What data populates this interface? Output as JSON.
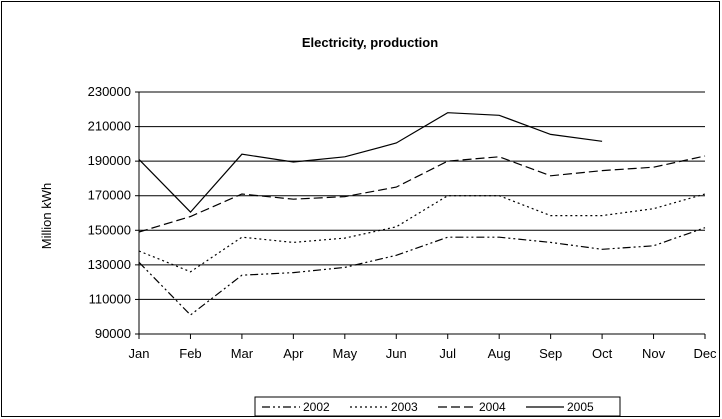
{
  "chart_data": {
    "type": "line",
    "title": "Electricity, production",
    "xlabel": "",
    "ylabel": "Million kWh",
    "categories": [
      "Jan",
      "Feb",
      "Mar",
      "Apr",
      "May",
      "Jun",
      "Jul",
      "Aug",
      "Sep",
      "Oct",
      "Nov",
      "Dec"
    ],
    "ylim": [
      90000,
      230000
    ],
    "yticks": [
      90000,
      110000,
      130000,
      150000,
      170000,
      190000,
      210000,
      230000
    ],
    "grid": true,
    "legend_position": "bottom",
    "series": [
      {
        "name": "2002",
        "dash": "dash-dot-dot",
        "color": "#000000",
        "values": [
          131500,
          101000,
          124000,
          125500,
          128500,
          135500,
          146000,
          146000,
          143000,
          139000,
          141000,
          151500
        ]
      },
      {
        "name": "2003",
        "dash": "dotted",
        "color": "#000000",
        "values": [
          138000,
          126000,
          146000,
          143000,
          145500,
          152000,
          170000,
          170000,
          158500,
          158500,
          162500,
          171000
        ]
      },
      {
        "name": "2004",
        "dash": "dashed",
        "color": "#000000",
        "values": [
          149000,
          158000,
          171000,
          168000,
          169500,
          175000,
          190000,
          192500,
          181500,
          184500,
          186500,
          193000
        ]
      },
      {
        "name": "2005",
        "dash": "solid",
        "color": "#000000",
        "values": [
          191000,
          160500,
          194000,
          189500,
          192500,
          200500,
          218000,
          216500,
          205500,
          201500,
          null,
          null
        ]
      }
    ]
  }
}
